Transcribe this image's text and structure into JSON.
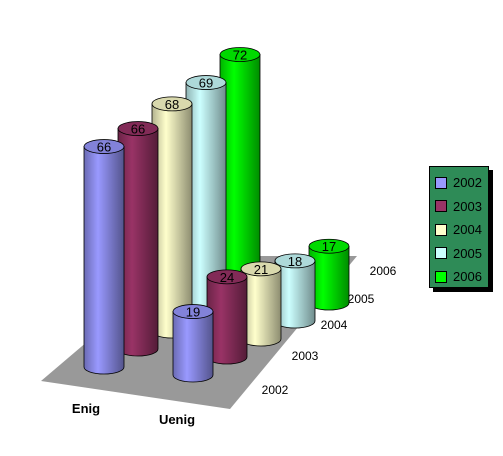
{
  "chart_data": {
    "type": "bar",
    "style": "3d-cylinder",
    "categories": [
      "Enig",
      "Uenig"
    ],
    "depth_categories": [
      "2002",
      "2003",
      "2004",
      "2005",
      "2006"
    ],
    "series": [
      {
        "name": "2002",
        "color": "#9999ff",
        "values": [
          66,
          19
        ]
      },
      {
        "name": "2003",
        "color": "#993366",
        "values": [
          66,
          24
        ]
      },
      {
        "name": "2004",
        "color": "#ffffcc",
        "values": [
          68,
          21
        ]
      },
      {
        "name": "2005",
        "color": "#ccffff",
        "values": [
          69,
          18
        ]
      },
      {
        "name": "2006",
        "color": "#00ff00",
        "values": [
          72,
          17
        ]
      }
    ],
    "data_labels": true,
    "title": "",
    "xlabel": "",
    "ylabel": "",
    "ylim": [
      0,
      80
    ],
    "legend_position": "right",
    "legend_background": "#2e8b57",
    "floor_color": "#999999"
  }
}
